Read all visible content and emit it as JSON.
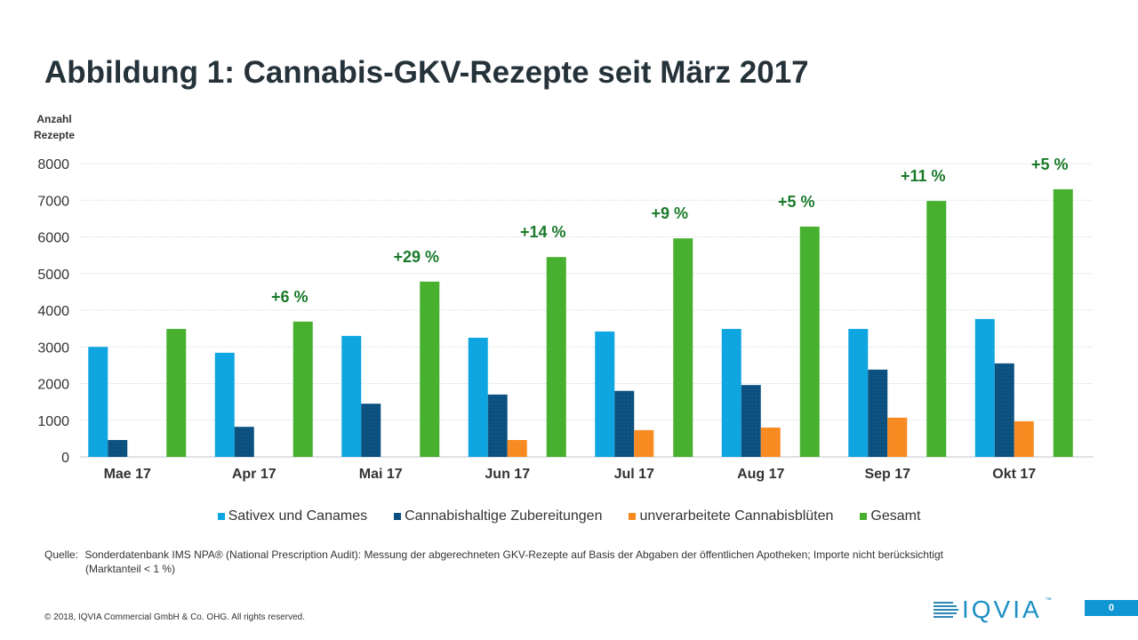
{
  "chart_data": {
    "type": "bar",
    "title": "Abbildung 1: Cannabis-GKV-Rezepte seit März 2017",
    "ylabel": "Anzahl Rezepte",
    "xlabel": "",
    "ylim": [
      0,
      8000
    ],
    "yticks": [
      0,
      1000,
      2000,
      3000,
      4000,
      5000,
      6000,
      7000,
      8000
    ],
    "grid": true,
    "legend_position": "bottom",
    "categories": [
      "Mae 17",
      "Apr 17",
      "Mai 17",
      "Jun 17",
      "Jul 17",
      "Aug 17",
      "Sep 17",
      "Okt 17"
    ],
    "series": [
      {
        "name": "Sativex und Canames",
        "color": "#0ea5e0",
        "values": [
          3000,
          2840,
          3300,
          3250,
          3420,
          3490,
          3490,
          3760
        ]
      },
      {
        "name": "Cannabishaltige Zubereitungen",
        "color": "#0a4f7e",
        "values": [
          460,
          820,
          1450,
          1700,
          1800,
          1960,
          2380,
          2550
        ]
      },
      {
        "name": "unverarbeitete Cannabisblüten",
        "color": "#f7891f",
        "values": [
          null,
          null,
          null,
          460,
          730,
          800,
          1070,
          970
        ]
      },
      {
        "name": "Gesamt",
        "color": "#47b02f",
        "values": [
          3490,
          3690,
          4780,
          5450,
          5960,
          6280,
          6980,
          7300
        ]
      }
    ],
    "annotations": [
      "",
      "+6 %",
      "+29 %",
      "+14 %",
      "+9 %",
      "+5 %",
      "+11 %",
      "+5 %"
    ]
  },
  "header": {
    "title": "Abbildung 1: Cannabis-GKV-Rezepte seit März 2017",
    "y_unit_line1": "Anzahl",
    "y_unit_line2": "Rezepte"
  },
  "footer": {
    "source_label": "Quelle:",
    "source_text": "Sonderdatenbank IMS NPA® (National Prescription Audit): Messung der abgerechneten GKV-Rezepte auf Basis der Abgaben der öffentlichen Apotheken; Importe nicht berücksichtigt",
    "source_text_2": "(Marktanteil < 1 %)",
    "copyright": "© 2018, IQVIA Commercial GmbH & Co. OHG. All rights reserved.",
    "logo_text": "IQVIA",
    "logo_tm": "™",
    "page_number": "0"
  }
}
